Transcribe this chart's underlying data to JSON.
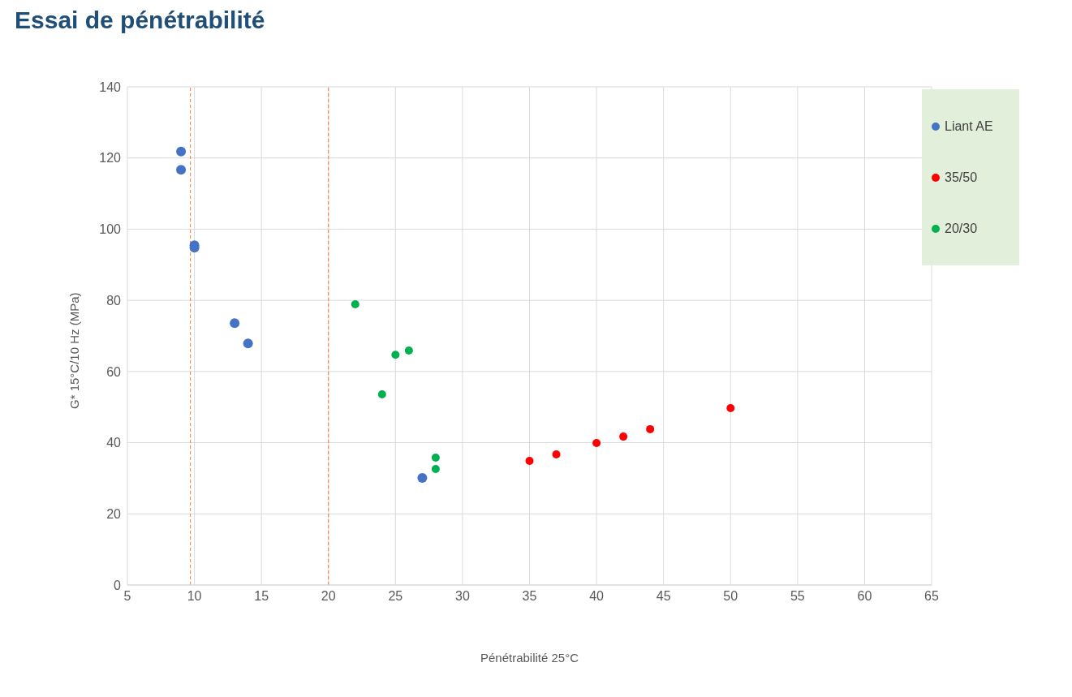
{
  "chart_data": {
    "type": "scatter",
    "title": "Essai de pénétrabilité",
    "xlabel": "Pénétrabilité 25°C",
    "ylabel": "G* 15°C/10 Hz (MPa)",
    "xlim": [
      5,
      65
    ],
    "xticks": [
      5,
      10,
      15,
      20,
      25,
      30,
      35,
      40,
      45,
      50,
      55,
      60,
      65
    ],
    "ylim": [
      0,
      140
    ],
    "yticks": [
      0,
      20,
      40,
      60,
      80,
      100,
      120,
      140
    ],
    "grid": true,
    "legend": "top right",
    "marker": "circle",
    "series": [
      {
        "name": "Liant AE",
        "color": "#4472c4",
        "x": [
          9,
          9,
          10,
          10,
          13,
          14,
          27
        ],
        "values": [
          121.8,
          116.7,
          95.5,
          94.8,
          73.6,
          67.9,
          30.1
        ]
      },
      {
        "name": "35/50",
        "color": "#ff0000",
        "x": [
          35,
          37,
          40,
          42,
          44,
          50
        ],
        "values": [
          34.9,
          36.7,
          39.9,
          41.7,
          43.8,
          49.7
        ]
      },
      {
        "name": "20/30",
        "color": "#00b050",
        "x": [
          22,
          24,
          25,
          26,
          28,
          28
        ],
        "values": [
          78.9,
          53.6,
          64.7,
          65.9,
          35.8,
          32.6
        ]
      }
    ],
    "ref_lines": [
      {
        "axis": "x",
        "value": 9.7,
        "color": "#ed7d31",
        "line_style": "dashed"
      },
      {
        "axis": "x",
        "value": 20,
        "color": "#ed7d31",
        "line_style": "dashed"
      }
    ]
  }
}
